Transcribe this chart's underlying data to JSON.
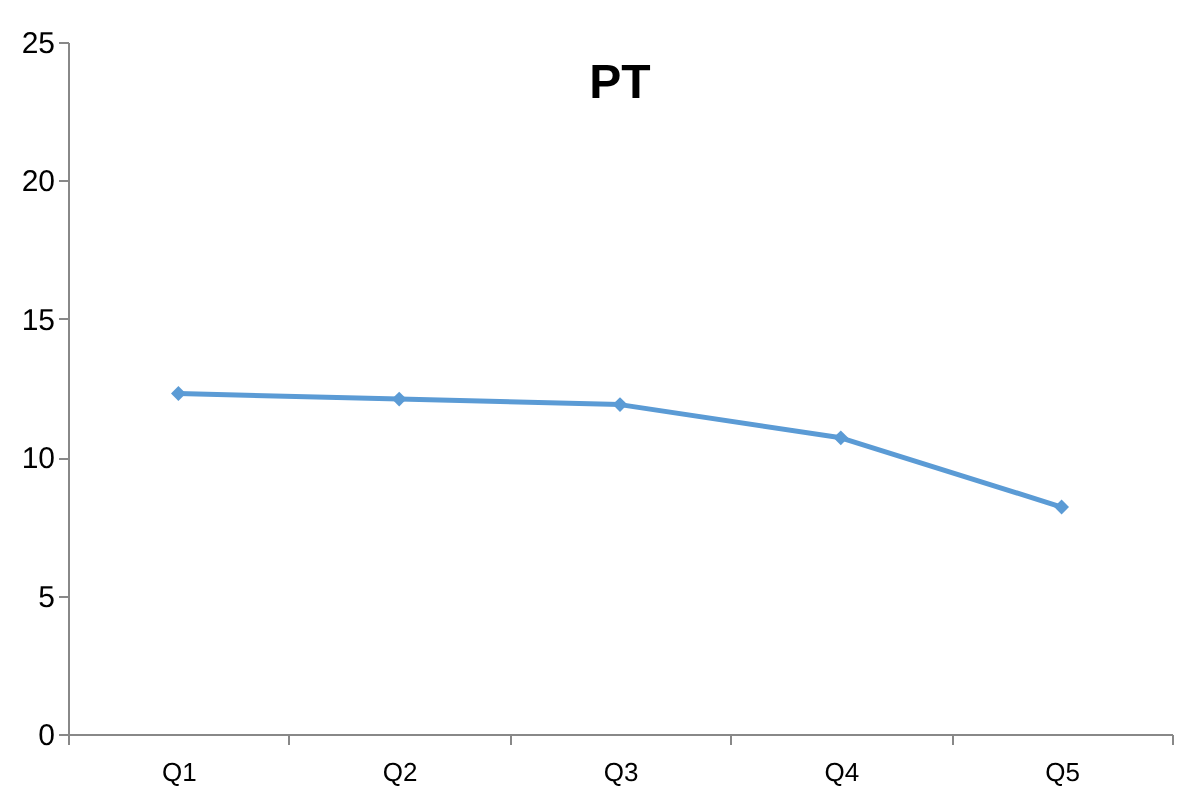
{
  "chart_data": {
    "type": "line",
    "title": "PT",
    "categories": [
      "Q1",
      "Q2",
      "Q3",
      "Q4",
      "Q5"
    ],
    "series": [
      {
        "color": "#5b9bd5",
        "values": [
          12.3,
          12.1,
          11.9,
          10.7,
          8.2
        ]
      }
    ],
    "ylim": [
      0,
      25
    ],
    "yticks": [
      0,
      5,
      10,
      15,
      20,
      25
    ],
    "grid": false,
    "legend": false,
    "marker": "diamond",
    "line_style": "solid"
  }
}
